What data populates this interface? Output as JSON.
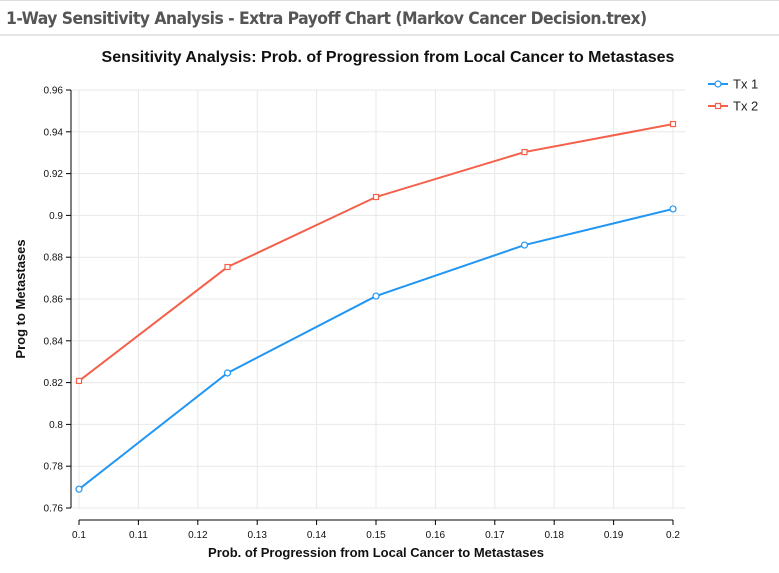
{
  "window": {
    "title": "1-Way Sensitivity Analysis - Extra Payoff Chart (Markov Cancer Decision.trex)"
  },
  "chart_data": {
    "type": "line",
    "title": "Sensitivity Analysis: Prob. of Progression from Local Cancer to Metastases",
    "xlabel": "Prob. of Progression from Local Cancer to Metastases",
    "ylabel": "Prog to Metastases",
    "xlim": [
      0.1,
      0.2
    ],
    "ylim": [
      0.76,
      0.96
    ],
    "xticks": [
      "0.1",
      "0.11",
      "0.12",
      "0.13",
      "0.14",
      "0.15",
      "0.16",
      "0.17",
      "0.18",
      "0.19",
      "0.2"
    ],
    "yticks": [
      "0.76",
      "0.78",
      "0.8",
      "0.82",
      "0.84",
      "0.86",
      "0.88",
      "0.9",
      "0.92",
      "0.94",
      "0.96"
    ],
    "grid": true,
    "legend_position": "top-right",
    "x": [
      0.1,
      0.125,
      0.15,
      0.175,
      0.2
    ],
    "series": [
      {
        "name": "Tx 1",
        "color": "#2196f3",
        "marker": "circle",
        "values": [
          0.769,
          0.8246,
          0.8614,
          0.8858,
          0.9031
        ]
      },
      {
        "name": "Tx 2",
        "color": "#f4604a",
        "marker": "square",
        "values": [
          0.8208,
          0.8753,
          0.9088,
          0.9303,
          0.9437
        ]
      }
    ]
  }
}
